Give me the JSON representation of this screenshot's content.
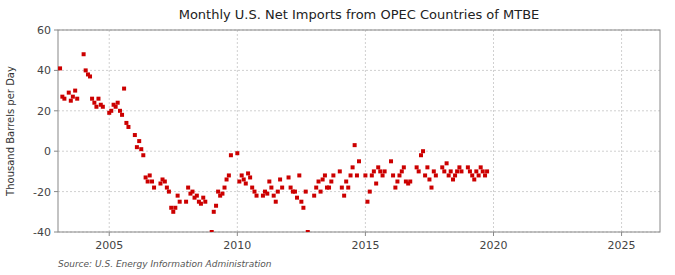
{
  "chart_data": {
    "type": "scatter",
    "title": "Monthly U.S. Net Imports from OPEC Countries of MTBE",
    "ylabel": "Thousand Barrels per Day",
    "source": "Source: U.S. Energy Information Administration",
    "color": "#cc0000",
    "grid": true,
    "marker": "square",
    "xlim": [
      2003.0,
      2026.5
    ],
    "ylim": [
      -40,
      60
    ],
    "xticks": [
      2005,
      2010,
      2015,
      2020,
      2025
    ],
    "yticks": [
      -40,
      -20,
      0,
      20,
      40,
      60
    ],
    "x": [
      2003.08,
      2003.17,
      2003.25,
      2003.42,
      2003.5,
      2003.58,
      2003.67,
      2003.75,
      2004.0,
      2004.08,
      2004.17,
      2004.25,
      2004.33,
      2004.42,
      2004.5,
      2004.58,
      2004.67,
      2004.75,
      2005.0,
      2005.08,
      2005.17,
      2005.25,
      2005.33,
      2005.42,
      2005.5,
      2005.58,
      2005.67,
      2005.75,
      2006.0,
      2006.08,
      2006.17,
      2006.25,
      2006.33,
      2006.42,
      2006.5,
      2006.58,
      2006.67,
      2006.75,
      2007.0,
      2007.08,
      2007.17,
      2007.25,
      2007.33,
      2007.42,
      2007.5,
      2007.58,
      2007.67,
      2007.75,
      2008.0,
      2008.08,
      2008.17,
      2008.25,
      2008.33,
      2008.42,
      2008.5,
      2008.58,
      2008.67,
      2008.75,
      2009.0,
      2009.08,
      2009.17,
      2009.25,
      2009.33,
      2009.42,
      2009.5,
      2009.58,
      2009.67,
      2009.75,
      2010.0,
      2010.08,
      2010.17,
      2010.25,
      2010.33,
      2010.42,
      2010.5,
      2010.58,
      2010.67,
      2010.75,
      2011.0,
      2011.08,
      2011.17,
      2011.25,
      2011.33,
      2011.42,
      2011.5,
      2011.58,
      2011.67,
      2011.75,
      2012.0,
      2012.08,
      2012.17,
      2012.25,
      2012.33,
      2012.42,
      2012.5,
      2012.58,
      2012.67,
      2012.75,
      2013.0,
      2013.08,
      2013.17,
      2013.25,
      2013.33,
      2013.42,
      2013.5,
      2013.58,
      2013.67,
      2013.75,
      2014.0,
      2014.08,
      2014.17,
      2014.25,
      2014.33,
      2014.42,
      2014.5,
      2014.58,
      2014.67,
      2014.75,
      2015.0,
      2015.08,
      2015.17,
      2015.25,
      2015.33,
      2015.42,
      2015.5,
      2015.58,
      2015.67,
      2015.75,
      2016.0,
      2016.08,
      2016.17,
      2016.25,
      2016.33,
      2016.42,
      2016.5,
      2016.58,
      2016.67,
      2016.75,
      2017.0,
      2017.08,
      2017.17,
      2017.25,
      2017.33,
      2017.42,
      2017.5,
      2017.58,
      2017.67,
      2017.75,
      2018.0,
      2018.08,
      2018.17,
      2018.25,
      2018.33,
      2018.42,
      2018.5,
      2018.58,
      2018.67,
      2018.75,
      2019.0,
      2019.08,
      2019.17,
      2019.25,
      2019.33,
      2019.42,
      2019.5,
      2019.58,
      2019.67,
      2019.75
    ],
    "values": [
      41,
      27,
      26,
      29,
      25,
      27,
      30,
      26,
      48,
      40,
      38,
      37,
      26,
      24,
      22,
      26,
      23,
      22,
      19,
      20,
      23,
      22,
      24,
      20,
      18,
      31,
      14,
      12,
      8,
      2,
      5,
      1,
      -2,
      -13,
      -15,
      -12,
      -15,
      -18,
      -16,
      -14,
      -15,
      -18,
      -20,
      -28,
      -30,
      -28,
      -22,
      -25,
      -25,
      -18,
      -21,
      -20,
      -23,
      -22,
      -25,
      -26,
      -23,
      -25,
      -40,
      -30,
      -27,
      -20,
      -22,
      -21,
      -18,
      -14,
      -12,
      -2,
      -1,
      -15,
      -12,
      -14,
      -16,
      -11,
      -13,
      -18,
      -20,
      -22,
      -22,
      -20,
      -21,
      -15,
      -18,
      -22,
      -25,
      -20,
      -14,
      -18,
      -13,
      -18,
      -20,
      -20,
      -23,
      -12,
      -25,
      -28,
      -20,
      -40,
      -22,
      -18,
      -15,
      -20,
      -14,
      -12,
      -18,
      -18,
      -15,
      -12,
      -10,
      -18,
      -22,
      -15,
      -18,
      -12,
      -8,
      3,
      -12,
      -5,
      -12,
      -25,
      -20,
      -12,
      -10,
      -16,
      -8,
      -10,
      -12,
      -10,
      -5,
      -12,
      -18,
      -15,
      -12,
      -10,
      -8,
      -15,
      -16,
      -15,
      -8,
      -10,
      -2,
      0,
      -12,
      -8,
      -14,
      -18,
      -10,
      -12,
      -8,
      -10,
      -6,
      -12,
      -10,
      -14,
      -12,
      -10,
      -8,
      -10,
      -8,
      -10,
      -12,
      -14,
      -10,
      -12,
      -8,
      -10,
      -12,
      -10
    ]
  }
}
